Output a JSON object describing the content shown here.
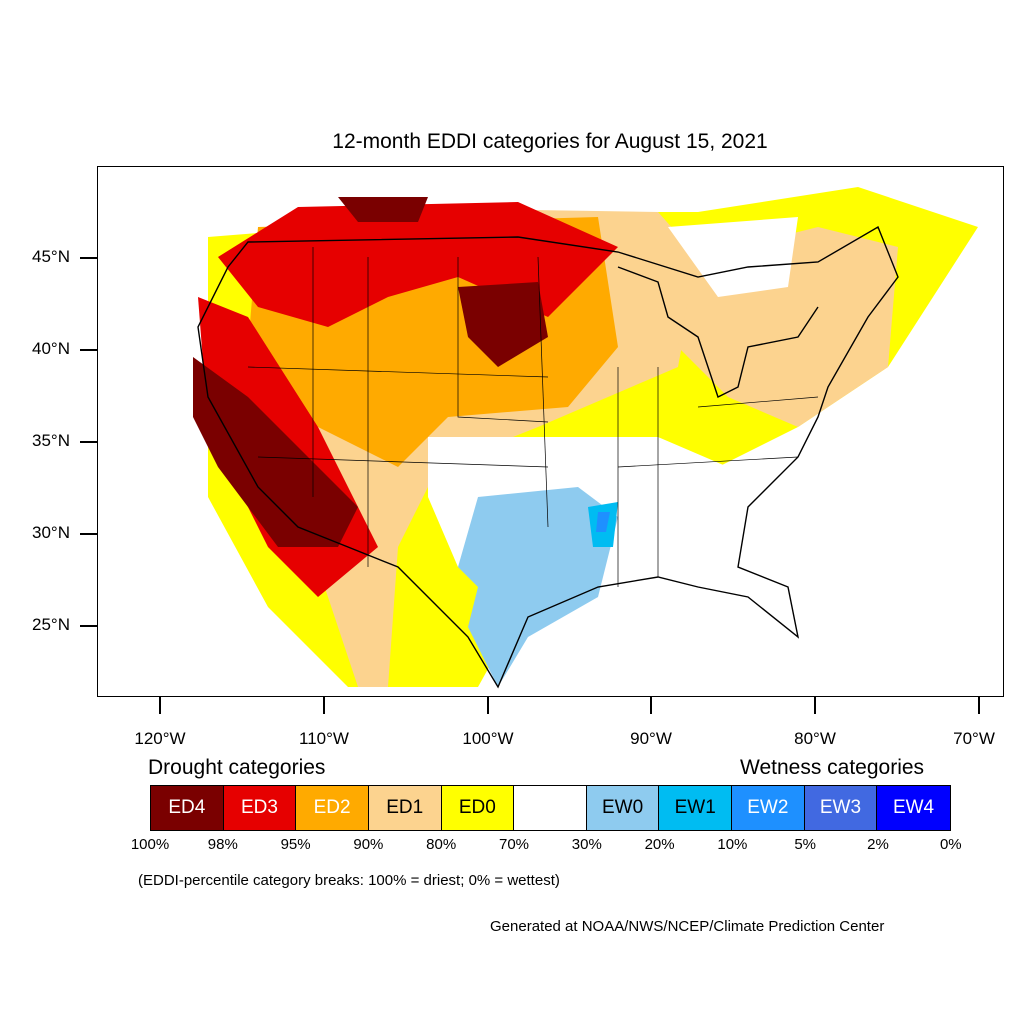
{
  "title": "12-month EDDI categories for August 15, 2021",
  "map": {
    "latitude_labels": [
      "45°N",
      "40°N",
      "35°N",
      "30°N",
      "25°N"
    ],
    "longitude_labels": [
      "120°W",
      "110°W",
      "100°W",
      "90°W",
      "80°W",
      "70°W"
    ]
  },
  "legend": {
    "drought_heading": "Drought categories",
    "wetness_heading": "Wetness categories",
    "categories": [
      {
        "label": "ED4",
        "color": "#7a0000",
        "text_color": "#ffffff"
      },
      {
        "label": "ED3",
        "color": "#e60000",
        "text_color": "#ffffff"
      },
      {
        "label": "ED2",
        "color": "#ffaa00",
        "text_color": "#ffffff"
      },
      {
        "label": "ED1",
        "color": "#fcd38f",
        "text_color": "#000000"
      },
      {
        "label": "ED0",
        "color": "#ffff00",
        "text_color": "#000000"
      },
      {
        "label": "",
        "color": "#ffffff",
        "text_color": "#000000"
      },
      {
        "label": "EW0",
        "color": "#8ecbef",
        "text_color": "#000000"
      },
      {
        "label": "EW1",
        "color": "#00bcf2",
        "text_color": "#000000"
      },
      {
        "label": "EW2",
        "color": "#1e90ff",
        "text_color": "#ffffff"
      },
      {
        "label": "EW3",
        "color": "#4169e1",
        "text_color": "#ffffff"
      },
      {
        "label": "EW4",
        "color": "#0000ff",
        "text_color": "#ffffff"
      }
    ],
    "percentiles": [
      "100%",
      "98%",
      "95%",
      "90%",
      "80%",
      "70%",
      "30%",
      "20%",
      "10%",
      "5%",
      "2%",
      "0%"
    ]
  },
  "note": "(EDDI-percentile category breaks: 100% = driest; 0% = wettest)",
  "credit": "Generated at NOAA/NWS/NCEP/Climate Prediction Center"
}
